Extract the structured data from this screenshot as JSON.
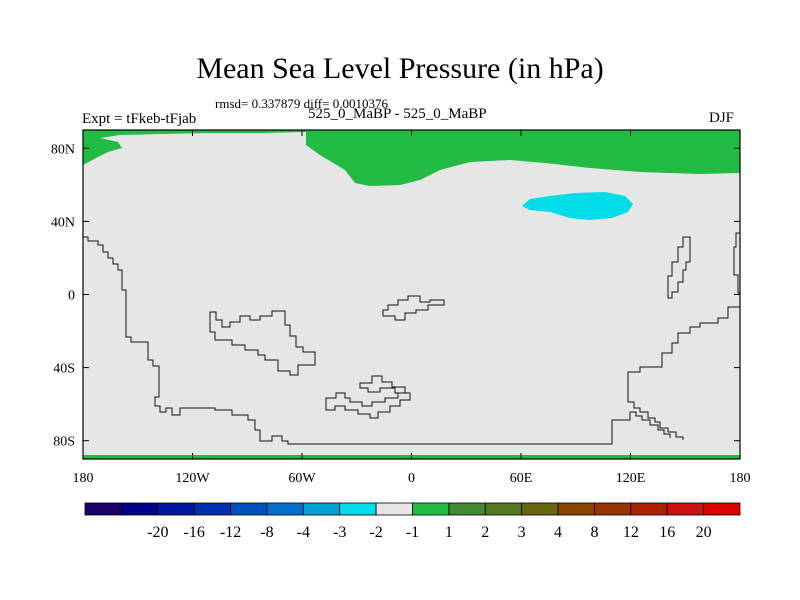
{
  "title": "Mean Sea Level Pressure (in hPa)",
  "stats": "rmsd= 0.337879 diff= 0.0010376",
  "experiment": "Expt = tFkeb-tFjab",
  "center_label": "525_0_MaBP - 525_0_MaBP",
  "season": "DJF",
  "chart_data": {
    "type": "heatmap",
    "field": "pressure difference",
    "units": "hPa",
    "background_value_range": [
      -1,
      1
    ],
    "regions": [
      {
        "name": "arctic-positive-band",
        "value_range": [
          1,
          2
        ],
        "color": "#22bb44"
      },
      {
        "name": "north-pacific-negative-patch",
        "value_range": [
          -2,
          -1
        ],
        "color": "#00dce8"
      },
      {
        "name": "south-polar-edge",
        "value_range": [
          1,
          2
        ],
        "color": "#22bb44"
      }
    ],
    "x_ticks": [
      "180",
      "120W",
      "60W",
      "0",
      "60E",
      "120E",
      "180"
    ],
    "x_values": [
      -180,
      -120,
      -60,
      0,
      60,
      120,
      180
    ],
    "y_ticks": [
      "80N",
      "40N",
      "0",
      "40S",
      "80S"
    ],
    "y_values": [
      80,
      40,
      0,
      -40,
      -80
    ],
    "xlim": [
      -180,
      180
    ],
    "ylim": [
      -90,
      90
    ],
    "colorbar": {
      "labels": [
        "-20",
        "-16",
        "-12",
        "-8",
        "-4",
        "-3",
        "-2",
        "-1",
        "1",
        "2",
        "3",
        "4",
        "8",
        "12",
        "16",
        "20"
      ],
      "colors": [
        "#1a0068",
        "#000088",
        "#0018a0",
        "#0030b0",
        "#0050c0",
        "#0070cc",
        "#00a0d8",
        "#00dce8",
        "#e6e6e6",
        "#22bb44",
        "#448833",
        "#557722",
        "#666611",
        "#884400",
        "#993300",
        "#aa2200",
        "#cc1111",
        "#dd0000"
      ]
    }
  }
}
